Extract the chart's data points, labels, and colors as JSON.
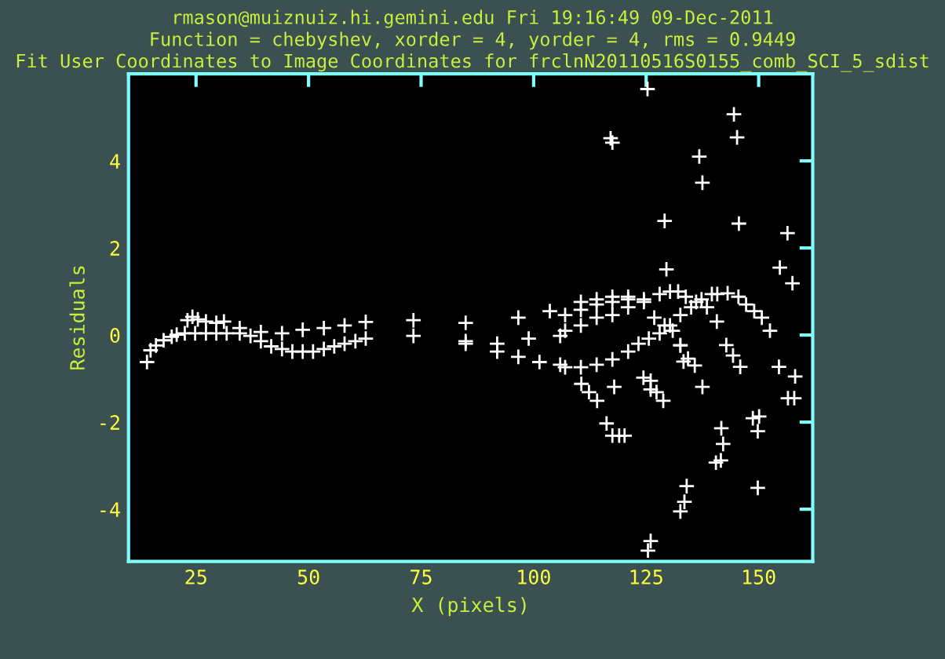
{
  "chart_data": {
    "type": "scatter",
    "title": "rmason@muiznuiz.hi.gemini.edu Fri 19:16:49 09-Dec-2011",
    "subtitle": "Function = chebyshev, xorder = 4, yorder = 4, rms = 0.9449",
    "annotations": [
      "Fit User Coordinates to Image Coordinates for frclnN20110516S0155_comb_SCI_5_sdist"
    ],
    "xlabel": "X (pixels)",
    "ylabel": "Residuals",
    "xlim": [
      10,
      162
    ],
    "ylim": [
      -5.2,
      6
    ],
    "xticks": [
      25,
      50,
      75,
      100,
      125,
      150
    ],
    "yticks": [
      -4,
      -2,
      0,
      2,
      4
    ],
    "grid": false,
    "legend": false,
    "marker": "cross",
    "series": [
      {
        "color": "#ffffff",
        "x": [
          14.1,
          14.9,
          16.1,
          17.8,
          19.6,
          20.7,
          23.1,
          24.2,
          25.4,
          27.2,
          29.5,
          31.2,
          22.5,
          24.8,
          27.2,
          29.5,
          31.8,
          34.7,
          37.1,
          39.4,
          41.7,
          44.1,
          46.4,
          48.7,
          51.0,
          53.4,
          55.7,
          58.0,
          60.4,
          62.7,
          34.7,
          39.4,
          44.1,
          48.7,
          53.4,
          58.0,
          62.7,
          73.3,
          84.9,
          96.6,
          103.6,
          73.3,
          84.9,
          91.9,
          98.9,
          105.9,
          84.9,
          91.9,
          96.6,
          101.3,
          105.9,
          110.5,
          114.0,
          117.5,
          121.0,
          124.5,
          128.0,
          130.3,
          132.1,
          133.8,
          136.1,
          138.5,
          140.8,
          143.1,
          145.5,
          147.2,
          149.0,
          150.7,
          152.5,
          107.0,
          110.5,
          114.0,
          117.5,
          121.0,
          107.0,
          110.5,
          114.0,
          117.5,
          121.0,
          124.5,
          126.8,
          129.1,
          130.9,
          132.6,
          107.0,
          110.5,
          114.0,
          117.5,
          121.0,
          123.3,
          125.6,
          128.0,
          130.3,
          132.6,
          135.0,
          137.3,
          139.6,
          144.5,
          145.2,
          117.1,
          117.5,
          136.8,
          137.5,
          129.1,
          145.6,
          156.4,
          154.7,
          157.5,
          129.5,
          125.3,
          154.5,
          158.1,
          156.5,
          157.9,
          148.7,
          150.1,
          149.8,
          149.8,
          141.7,
          142.1,
          140.5,
          141.6,
          134.0,
          133.5,
          132.6,
          126.0,
          125.4,
          116.2,
          117.5,
          119.0,
          120.2,
          110.6,
          112.3,
          114.1,
          117.9,
          124.4,
          126.0,
          126.0,
          127.3,
          128.8,
          137.5,
          142.8,
          144.3,
          145.9,
          132.6,
          133.3,
          134.3,
          135.8,
          140.7
        ],
        "values": [
          -0.62,
          -0.35,
          -0.24,
          -0.12,
          -0.04,
          0.01,
          0.34,
          0.42,
          0.36,
          0.31,
          0.28,
          0.31,
          0.04,
          0.04,
          0.04,
          0.04,
          0.04,
          0.04,
          -0.02,
          -0.14,
          -0.26,
          -0.32,
          -0.38,
          -0.38,
          -0.38,
          -0.32,
          -0.26,
          -0.2,
          -0.14,
          -0.08,
          0.16,
          0.07,
          0.04,
          0.12,
          0.16,
          0.22,
          0.3,
          0.34,
          0.28,
          0.4,
          0.55,
          -0.02,
          -0.14,
          -0.2,
          -0.08,
          -0.02,
          -0.2,
          -0.38,
          -0.5,
          -0.62,
          -0.68,
          0.76,
          0.82,
          0.88,
          0.88,
          0.82,
          0.94,
          1.0,
          1.0,
          0.88,
          0.76,
          0.64,
          0.94,
          0.96,
          0.88,
          0.7,
          0.55,
          0.4,
          0.1,
          0.46,
          0.58,
          0.7,
          0.76,
          0.82,
          0.1,
          0.22,
          0.4,
          0.46,
          0.64,
          0.76,
          0.4,
          0.22,
          0.1,
          -0.24,
          -0.74,
          -0.74,
          -0.68,
          -0.56,
          -0.38,
          -0.2,
          -0.08,
          0.04,
          0.22,
          0.46,
          0.64,
          0.82,
          0.94,
          5.07,
          4.54,
          4.52,
          4.42,
          4.1,
          3.5,
          2.62,
          2.56,
          2.34,
          1.55,
          1.19,
          1.51,
          5.65,
          -0.73,
          -0.95,
          -1.45,
          -1.45,
          -1.91,
          -1.87,
          -2.21,
          -3.51,
          -2.14,
          -2.5,
          -2.93,
          -2.88,
          -3.47,
          -3.83,
          -4.05,
          -4.73,
          -4.95,
          -2.03,
          -2.31,
          -2.31,
          -2.31,
          -1.12,
          -1.31,
          -1.51,
          -1.19,
          -0.98,
          -1.05,
          -1.25,
          -1.31,
          -1.51,
          -1.19,
          -0.23,
          -0.47,
          -0.73,
          -0.23,
          -0.61,
          -0.54,
          -0.7,
          0.31
        ]
      }
    ]
  }
}
